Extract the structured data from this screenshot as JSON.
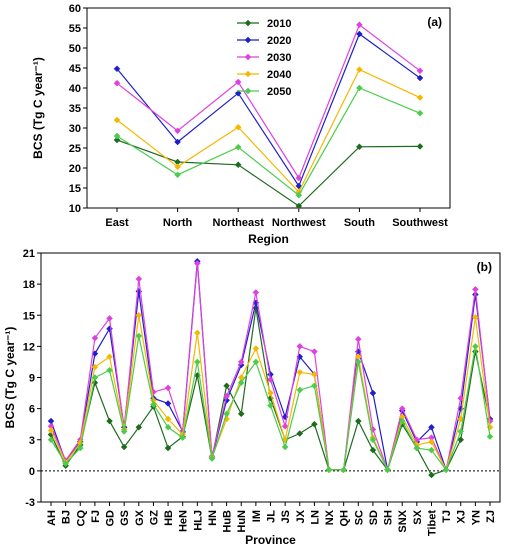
{
  "chart_data": [
    {
      "type": "line",
      "panel_label": "(a)",
      "xlabel": "Region",
      "ylabel": "BCS (Tg C year⁻¹)",
      "ylim": [
        10,
        60
      ],
      "yticks": [
        10,
        15,
        20,
        25,
        30,
        35,
        40,
        45,
        50,
        55,
        60
      ],
      "categories": [
        "East",
        "North",
        "Northeast",
        "Northwest",
        "South",
        "Southwest"
      ],
      "legend_position": "top-left",
      "grid": false,
      "series": [
        {
          "name": "2010",
          "color": "#1f6b1f",
          "values": [
            27.0,
            21.5,
            20.8,
            10.5,
            25.3,
            25.4
          ]
        },
        {
          "name": "2020",
          "color": "#1f1fcc",
          "values": [
            44.8,
            26.5,
            38.7,
            15.5,
            53.5,
            42.5
          ]
        },
        {
          "name": "2030",
          "color": "#e040e0",
          "values": [
            41.2,
            29.3,
            41.5,
            17.5,
            55.8,
            44.3
          ]
        },
        {
          "name": "2040",
          "color": "#f5b800",
          "values": [
            32.0,
            20.3,
            30.2,
            14.0,
            44.6,
            37.6
          ]
        },
        {
          "name": "2050",
          "color": "#4ccc4c",
          "values": [
            28.0,
            18.3,
            25.2,
            13.2,
            40.0,
            33.7
          ]
        }
      ]
    },
    {
      "type": "line",
      "panel_label": "(b)",
      "xlabel": "Province",
      "ylabel": "BCS (Tg C year⁻¹)",
      "ylim": [
        -3,
        21
      ],
      "yticks": [
        -3,
        0,
        3,
        6,
        9,
        12,
        15,
        18,
        21
      ],
      "zero_line": "dashed",
      "grid": false,
      "categories": [
        "AH",
        "BJ",
        "CQ",
        "FJ",
        "GD",
        "GS",
        "GX",
        "GZ",
        "HB",
        "HeN",
        "HLJ",
        "HN",
        "HuB",
        "HuN",
        "IM",
        "JL",
        "JS",
        "JX",
        "LN",
        "NX",
        "QH",
        "SC",
        "SD",
        "SH",
        "SNX",
        "SX",
        "Tibet",
        "TJ",
        "XJ",
        "YN",
        "ZJ"
      ],
      "series": [
        {
          "name": "2010",
          "color": "#1f6b1f",
          "values": [
            3.5,
            0.5,
            2.5,
            8.5,
            4.8,
            2.3,
            4.2,
            6.2,
            2.2,
            3.3,
            9.2,
            1.2,
            8.2,
            5.5,
            15.7,
            7.0,
            3.0,
            3.6,
            4.5,
            0.1,
            0.1,
            4.8,
            2.0,
            0.1,
            4.5,
            2.2,
            -0.4,
            0.1,
            3.0,
            11.5,
            4.8
          ]
        },
        {
          "name": "2020",
          "color": "#1f1fcc",
          "values": [
            4.8,
            0.9,
            2.8,
            11.3,
            13.7,
            4.2,
            17.3,
            7.0,
            6.5,
            3.8,
            20.2,
            1.3,
            6.8,
            10.2,
            16.2,
            9.3,
            5.2,
            11.0,
            9.3,
            0.1,
            0.1,
            11.5,
            7.5,
            0.1,
            5.8,
            2.8,
            4.2,
            0.1,
            6.0,
            17.0,
            5.0
          ]
        },
        {
          "name": "2030",
          "color": "#e040e0",
          "values": [
            4.3,
            1.0,
            3.0,
            12.8,
            14.7,
            4.0,
            18.5,
            7.6,
            8.0,
            3.7,
            20.0,
            1.4,
            7.2,
            10.5,
            17.2,
            8.8,
            4.3,
            12.0,
            11.5,
            0.1,
            0.1,
            12.7,
            4.0,
            0.1,
            6.0,
            3.0,
            3.2,
            0.1,
            7.0,
            17.5,
            4.8
          ]
        },
        {
          "name": "2040",
          "color": "#f5b800",
          "values": [
            3.9,
            0.8,
            2.7,
            10.0,
            11.0,
            4.0,
            15.0,
            6.8,
            5.0,
            3.5,
            13.3,
            1.3,
            5.0,
            9.0,
            11.8,
            7.5,
            3.0,
            9.5,
            9.3,
            0.1,
            0.1,
            11.0,
            3.2,
            0.1,
            5.2,
            2.5,
            2.8,
            0.1,
            5.0,
            14.8,
            4.2
          ]
        },
        {
          "name": "2050",
          "color": "#4ccc4c",
          "values": [
            3.0,
            0.7,
            2.2,
            9.0,
            9.7,
            3.8,
            13.0,
            6.4,
            4.2,
            3.2,
            10.5,
            1.2,
            5.5,
            8.5,
            10.5,
            6.3,
            2.3,
            7.8,
            8.2,
            0.1,
            0.1,
            10.5,
            3.0,
            0.1,
            4.8,
            2.2,
            2.0,
            0.1,
            3.8,
            12.0,
            3.3
          ]
        }
      ]
    }
  ]
}
